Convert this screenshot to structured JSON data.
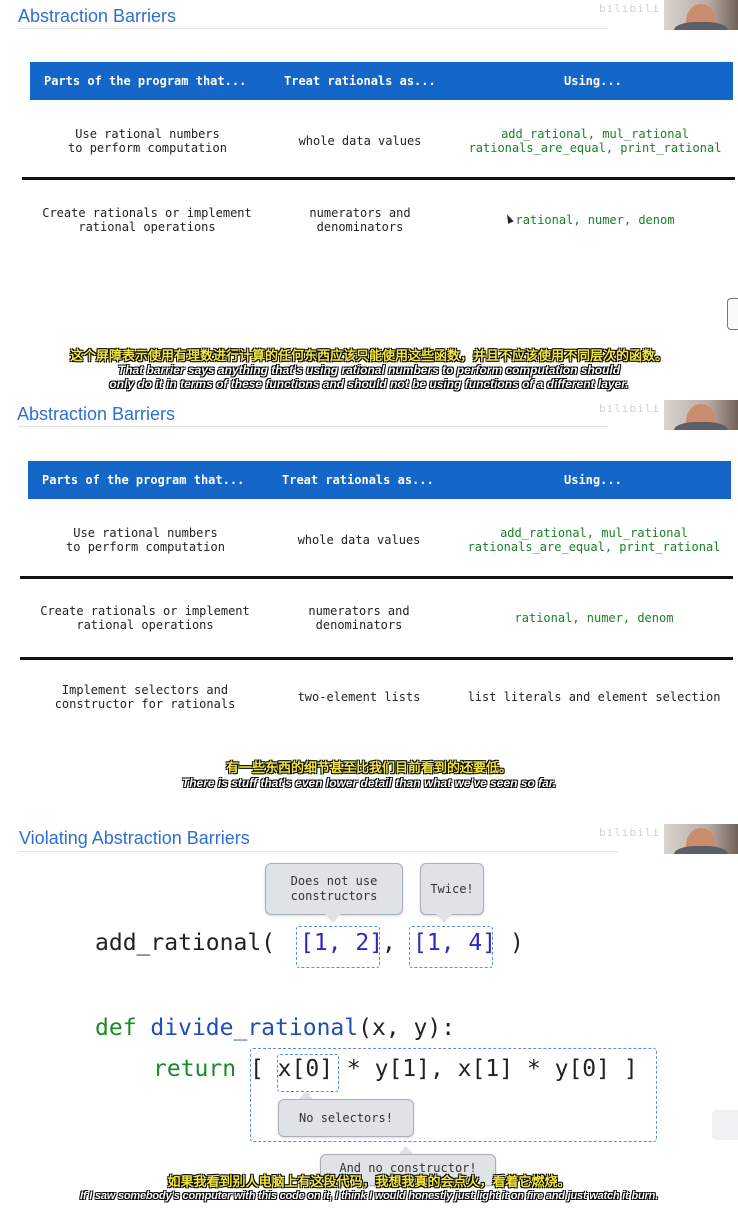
{
  "frame1": {
    "title": "Abstraction Barriers",
    "headers": [
      "Parts of the program that...",
      "Treat rationals as...",
      "Using..."
    ],
    "rows": [
      {
        "part": [
          "Use rational numbers",
          "to perform computation"
        ],
        "treat": [
          "whole data values"
        ],
        "using": [
          "add_rational, mul_rational",
          "rationals_are_equal, print_rational"
        ]
      },
      {
        "part": [
          "Create rationals or implement",
          "rational operations"
        ],
        "treat": [
          "numerators and",
          "denominators"
        ],
        "using": [
          "rational, numer, denom"
        ]
      }
    ],
    "subtitle_zh": "这个屏障表示使用有理数进行计算的任何东西应该只能使用这些函数，并且不应该使用不同层次的函数。",
    "subtitle_en": [
      "That barrier says anything that's using rational numbers to perform computation should",
      "only do it in terms of these functions and should not be using functions of a different layer."
    ]
  },
  "frame2": {
    "title": "Abstraction Barriers",
    "headers": [
      "Parts of the program that...",
      "Treat rationals as...",
      "Using..."
    ],
    "rows": [
      {
        "part": [
          "Use rational numbers",
          "to perform computation"
        ],
        "treat": [
          "whole data values"
        ],
        "using": [
          "add_rational, mul_rational",
          "rationals_are_equal, print_rational"
        ]
      },
      {
        "part": [
          "Create rationals or implement",
          "rational operations"
        ],
        "treat": [
          "numerators and",
          "denominators"
        ],
        "using": [
          "rational, numer, denom"
        ]
      },
      {
        "part": [
          "Implement selectors and",
          "constructor for rationals"
        ],
        "treat": [
          "two-element lists"
        ],
        "using": [
          "list literals and element selection"
        ]
      }
    ],
    "subtitle_zh": "有一些东西的细节甚至比我们目前看到的还要低。",
    "subtitle_en": [
      "There is stuff that's even lower detail than what we've seen so far."
    ]
  },
  "frame3": {
    "title": "Violating Abstraction Barriers",
    "callouts": {
      "constructors": [
        "Does not use",
        "constructors"
      ],
      "twice": "Twice!",
      "selectors": "No selectors!",
      "constructor": "And no constructor!"
    },
    "code": {
      "call_fn": "add_rational(",
      "arg1": "[1, 2]",
      "comma": ",",
      "arg2": "[1, 4]",
      "close": ")",
      "def_kw": "def",
      "def_name": "divide_rational",
      "def_params": "(x, y):",
      "return_kw": "return",
      "ret_open": "[",
      "ret_x0": "x[0]",
      "ret_rest": " * y[1], x[1] * y[0]",
      "ret_close": "]"
    },
    "subtitle_zh": "如果我看到别人电脑上有这段代码，我想我真的会点火，看着它燃烧。",
    "subtitle_en": [
      "If I saw somebody's computer with this code on it, I think I would honestly just light it on fire and just watch it burn."
    ]
  },
  "watermark": "bilibili",
  "colors": {
    "accent": "#2e6fd3",
    "header": "#1466c8",
    "keyword": "#1a8a2a",
    "function": "#1f4fb5",
    "number": "#2a2ac0",
    "subtitle_zh": "#f3e63b"
  }
}
